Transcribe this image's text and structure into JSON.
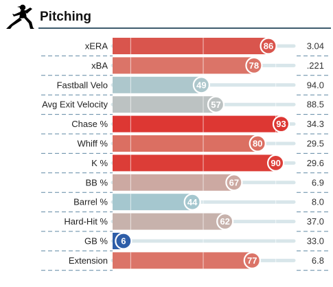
{
  "section": {
    "title": "Pitching",
    "icon": "pitcher-silhouette-icon"
  },
  "colors": {
    "track": "#d8e6ea",
    "divider": "#5e87a3",
    "label": "#222222",
    "value": "#333333"
  },
  "chart_data": {
    "type": "bar",
    "orientation": "horizontal",
    "title": "Pitching",
    "xlim": [
      0,
      100
    ],
    "categories": [
      "xERA",
      "xBA",
      "Fastball Velo",
      "Avg Exit Velocity",
      "Chase %",
      "Whiff %",
      "K %",
      "BB %",
      "Barrel %",
      "Hard-Hit %",
      "GB %",
      "Extension"
    ],
    "percentiles": [
      86,
      78,
      49,
      57,
      93,
      80,
      90,
      67,
      44,
      62,
      6,
      77
    ],
    "stat_values": [
      "3.04",
      ".221",
      "94.0",
      "88.5",
      "34.3",
      "29.5",
      "29.6",
      "6.9",
      "8.0",
      "37.0",
      "33.0",
      "6.8"
    ],
    "colors": [
      "#d9554d",
      "#db7468",
      "#adc7cc",
      "#bcc2c2",
      "#dd3733",
      "#db6f62",
      "#dc3d37",
      "#cca9a2",
      "#a5c7cf",
      "#c7b2ac",
      "#2e5ea8",
      "#db7468"
    ],
    "reference_lines": [
      10,
      50,
      90
    ]
  }
}
